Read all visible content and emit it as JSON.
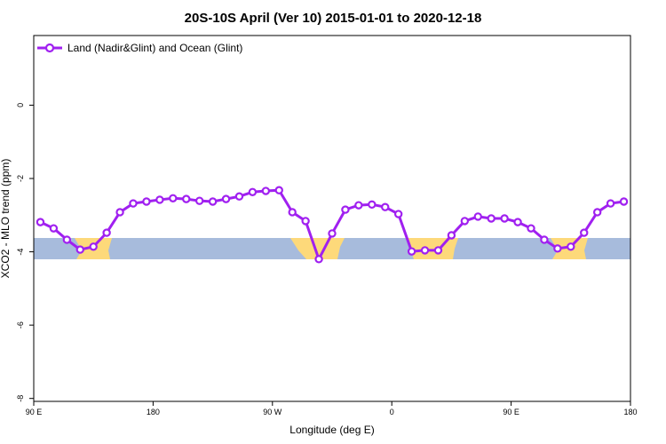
{
  "chart_data": {
    "type": "line",
    "title": "20S-10S April (Ver 10)   2015-01-01 to 2020-12-18",
    "x_label": "Longitude (deg E)",
    "y_label": "XCO2 - MLO trend (ppm)",
    "xlim": [
      90,
      540
    ],
    "ylim": [
      -8.08,
      1.9
    ],
    "xticks": [
      {
        "value": 90,
        "label": "90 E"
      },
      180,
      {
        "value": 270,
        "label": "90 W"
      },
      {
        "value": 360,
        "label": "0"
      },
      {
        "value": 450,
        "label": "90 E"
      },
      {
        "value": 540,
        "label": "180"
      }
    ],
    "yticks": [
      0,
      -2,
      -4,
      -6,
      -8
    ],
    "legend": "top-left",
    "x": [
      95,
      105,
      115,
      125,
      135,
      145,
      155,
      165,
      175,
      185,
      195,
      205,
      215,
      225,
      235,
      245,
      255,
      265,
      275,
      285,
      295,
      305,
      315,
      325,
      335,
      345,
      355,
      365,
      375,
      385,
      395,
      405,
      415,
      425,
      435,
      445,
      455,
      465,
      475,
      485,
      495,
      505,
      515,
      525,
      535
    ],
    "series": [
      {
        "name": "Land (Nadir&Glint) and Ocean (Glint)",
        "color": "#a020f0",
        "values": [
          -3.19,
          -3.36,
          -3.67,
          -3.94,
          -3.86,
          -3.48,
          -2.92,
          -2.68,
          -2.63,
          -2.58,
          -2.54,
          -2.56,
          -2.61,
          -2.63,
          -2.56,
          -2.49,
          -2.37,
          -2.34,
          -2.32,
          -2.92,
          -3.16,
          -4.2,
          -3.5,
          -2.85,
          -2.73,
          -2.71,
          -2.78,
          -2.97,
          -3.99,
          -3.96,
          -3.96,
          -3.55,
          -3.16,
          -3.04,
          -3.09,
          -3.09,
          -3.19,
          -3.36,
          -3.67,
          -3.91,
          -3.86,
          -3.48,
          -2.92,
          -2.68,
          -2.63
        ]
      }
    ]
  }
}
